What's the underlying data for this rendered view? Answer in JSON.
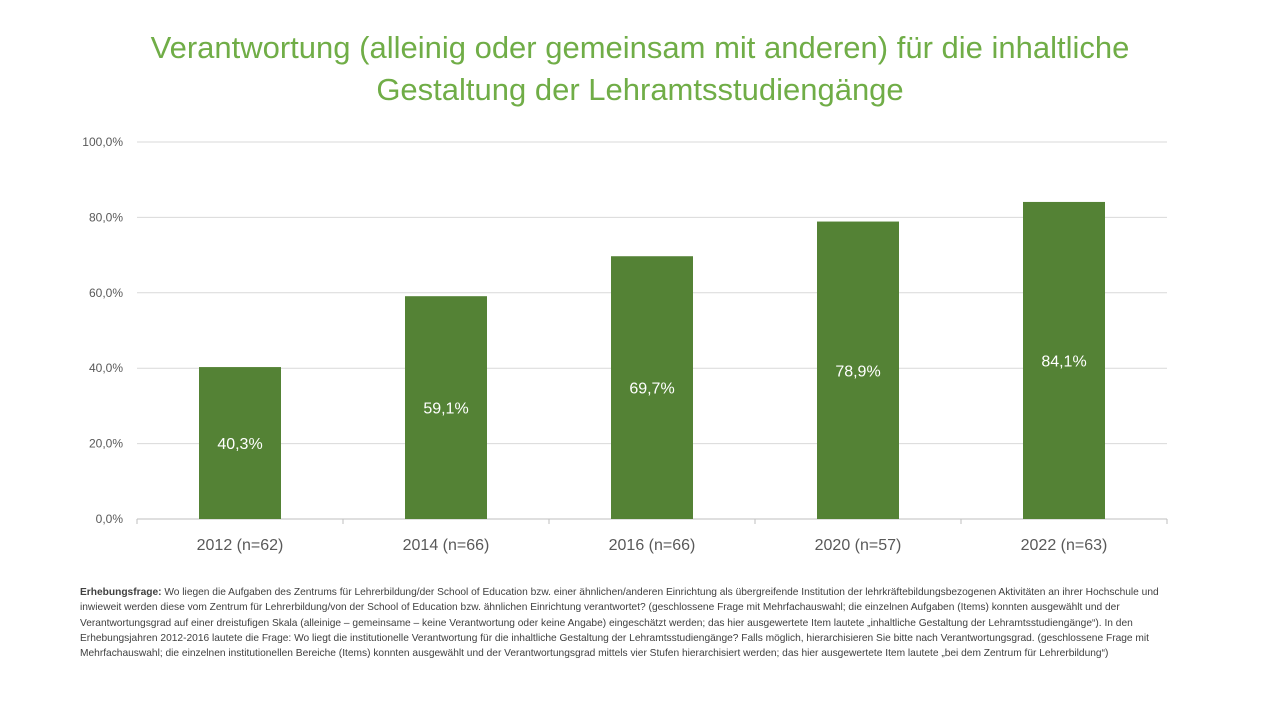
{
  "title": {
    "line1": "Verantwortung (alleinig oder gemeinsam mit anderen) für die inhaltliche",
    "line2": "Gestaltung der Lehramtsstudiengänge"
  },
  "chart_data": {
    "type": "bar",
    "title": "Verantwortung (alleinig oder gemeinsam mit anderen) für die inhaltliche Gestaltung der Lehramtsstudiengänge",
    "categories": [
      "2012 (n=62)",
      "2014 (n=66)",
      "2016 (n=66)",
      "2020 (n=57)",
      "2022 (n=63)"
    ],
    "values": [
      40.3,
      59.1,
      69.7,
      78.9,
      84.1
    ],
    "data_labels": [
      "40,3%",
      "59,1%",
      "69,7%",
      "78,9%",
      "84,1%"
    ],
    "yticks": [
      "0,0%",
      "20,0%",
      "40,0%",
      "60,0%",
      "80,0%",
      "100,0%"
    ],
    "ylim": [
      0,
      100
    ],
    "xlabel": "",
    "ylabel": "",
    "grid": true,
    "legend": "none",
    "colors": {
      "bar": "#548235",
      "title": "#70AD47",
      "grid": "#D9D9D9",
      "axis": "#BFBFBF",
      "tick_text": "#595959",
      "data_label": "#FFFFFF"
    }
  },
  "note": {
    "label": "Erhebungsfrage:",
    "text": "Wo liegen die Aufgaben des Zentrums für Lehrerbildung/der School of Education bzw. einer ähnlichen/anderen Einrichtung als übergreifende Institution der lehrkräftebildungsbezogenen Aktivitäten an ihrer Hochschule und inwieweit werden diese vom Zentrum für Lehrerbildung/von der School of Education bzw. ähnlichen Einrichtung verantwortet? (geschlossene Frage mit Mehrfachauswahl; die einzelnen Aufgaben (Items) konnten ausgewählt und der Verantwortungsgrad auf einer dreistufigen Skala (alleinige – gemeinsame – keine Verantwortung oder keine Angabe) eingeschätzt werden; das hier ausgewertete Item lautete „inhaltliche Gestaltung der Lehramtsstudiengänge“). In den Erhebungsjahren 2012-2016 lautete die Frage: Wo liegt die institutionelle Verantwortung für die inhaltliche Gestaltung der Lehramtsstudiengänge? Falls möglich, hierarchisieren Sie bitte nach Verantwortungsgrad. (geschlossene Frage mit Mehrfachauswahl; die einzelnen institutionellen Bereiche (Items) konnten ausgewählt und der Verantwortungsgrad mittels vier Stufen hierarchisiert werden; das hier ausgewertete Item lautete „bei dem Zentrum für Lehrerbildung“)"
  }
}
